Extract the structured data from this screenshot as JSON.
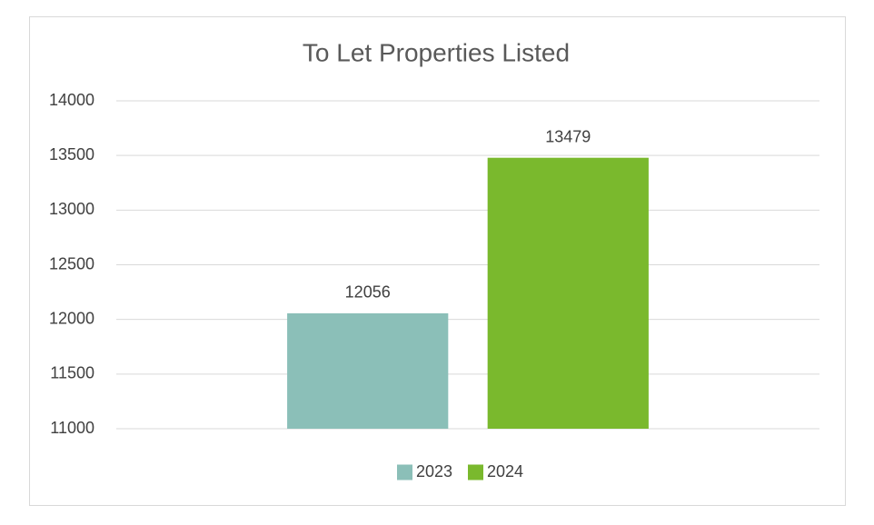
{
  "chart_data": {
    "type": "bar",
    "title": "To Let Properties Listed",
    "categories": [
      null
    ],
    "series": [
      {
        "name": "2023",
        "color": "#8bbfb8",
        "values": [
          12056
        ]
      },
      {
        "name": "2024",
        "color": "#7ab92d",
        "values": [
          13479
        ]
      }
    ],
    "ylim": [
      11000,
      14000
    ],
    "yticks": [
      11000,
      11500,
      12000,
      12500,
      13000,
      13500,
      14000
    ],
    "grid": true,
    "legend": "bottom"
  }
}
